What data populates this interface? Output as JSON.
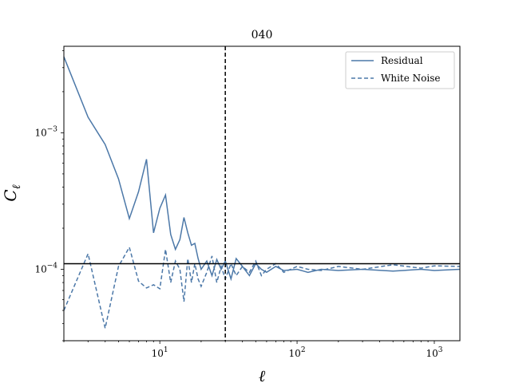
{
  "chart_data": {
    "type": "line",
    "title": "040",
    "xlabel": "ℓ",
    "ylabel": "C",
    "ylabel_subscript": "ℓ",
    "x_scale": "log",
    "y_scale": "log",
    "xlim": [
      2,
      1536
    ],
    "ylim": [
      3e-05,
      0.0043
    ],
    "x_ticks": [
      {
        "value": 10,
        "base": "10",
        "exp": "1"
      },
      {
        "value": 100,
        "base": "10",
        "exp": "2"
      },
      {
        "value": 1000,
        "base": "10",
        "exp": "3"
      }
    ],
    "y_ticks": [
      {
        "value": 0.0001,
        "base": "10",
        "exp": "−4"
      },
      {
        "value": 0.001,
        "base": "10",
        "exp": "−3"
      }
    ],
    "reference_lines": {
      "horizontal": {
        "y": 0.00011,
        "color": "#000000",
        "style": "solid"
      },
      "vertical": {
        "x": 30,
        "color": "#000000",
        "style": "dashed"
      }
    },
    "legend": {
      "placement": "top-right"
    },
    "series": [
      {
        "name": "Residual",
        "style": "solid",
        "color": "#4c78a8",
        "x": [
          2,
          3,
          4,
          5,
          6,
          7,
          8,
          9,
          10,
          11,
          12,
          13,
          14,
          15,
          16,
          17,
          18,
          19,
          20,
          22,
          24,
          26,
          28,
          30,
          33,
          36,
          40,
          45,
          50,
          55,
          60,
          70,
          80,
          100,
          120,
          150,
          200,
          300,
          500,
          800,
          1000,
          1536
        ],
        "y": [
          0.0036,
          0.0013,
          0.00082,
          0.00046,
          0.000235,
          0.00037,
          0.00064,
          0.000185,
          0.00028,
          0.00035,
          0.00018,
          0.00014,
          0.000165,
          0.00024,
          0.000185,
          0.00015,
          0.000155,
          0.00012,
          0.0001,
          0.000115,
          9e-05,
          0.000118,
          0.0001,
          0.000115,
          8.5e-05,
          0.00012,
          0.000105,
          9e-05,
          0.00011,
          0.0001,
          9.5e-05,
          0.000105,
          9.8e-05,
          0.0001,
          9.5e-05,
          0.0001,
          9.8e-05,
          0.0001,
          9.7e-05,
          0.0001,
          9.8e-05,
          0.0001
        ]
      },
      {
        "name": "White Noise",
        "style": "dashed",
        "color": "#4c78a8",
        "x": [
          2,
          3,
          4,
          5,
          6,
          7,
          8,
          9,
          10,
          11,
          12,
          13,
          14,
          15,
          16,
          17,
          18,
          19,
          20,
          22,
          24,
          26,
          28,
          30,
          33,
          36,
          40,
          45,
          50,
          55,
          60,
          70,
          80,
          100,
          120,
          150,
          200,
          300,
          500,
          800,
          1000,
          1536
        ],
        "y": [
          5e-05,
          0.00013,
          3.7e-05,
          0.000105,
          0.000145,
          8.2e-05,
          7.3e-05,
          7.7e-05,
          7.2e-05,
          0.00014,
          8e-05,
          0.000115,
          0.0001,
          5.8e-05,
          0.00012,
          8e-05,
          0.00011,
          8.5e-05,
          7.5e-05,
          9.5e-05,
          0.000125,
          8e-05,
          0.000105,
          8.5e-05,
          0.00011,
          9e-05,
          0.000105,
          9.5e-05,
          0.000115,
          9e-05,
          0.0001,
          0.00011,
          9.5e-05,
          0.000105,
          0.0001,
          9.8e-05,
          0.000105,
          0.0001,
          0.000108,
          0.000102,
          0.000106,
          0.000105
        ]
      }
    ]
  }
}
